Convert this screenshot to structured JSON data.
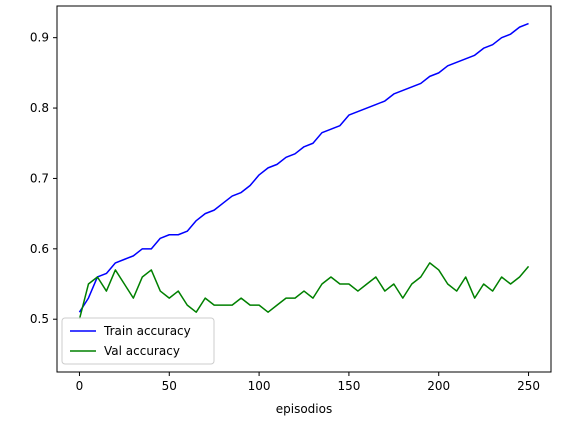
{
  "chart_data": {
    "type": "line",
    "title": "",
    "xlabel": "episodios",
    "ylabel": "",
    "xlim": [
      -12.5,
      262.5
    ],
    "ylim": [
      0.425,
      0.945
    ],
    "xticks": [
      0,
      50,
      100,
      150,
      200,
      250
    ],
    "yticks": [
      0.5,
      0.6,
      0.7,
      0.8,
      0.9
    ],
    "xtick_labels": [
      "0",
      "50",
      "100",
      "150",
      "200",
      "250"
    ],
    "ytick_labels": [
      "0.5",
      "0.6",
      "0.7",
      "0.8",
      "0.9"
    ],
    "grid": false,
    "legend": {
      "placement": "lower-left"
    },
    "series": [
      {
        "name": "Train accuracy",
        "color": "#0000ff",
        "x": [
          0,
          5,
          10,
          15,
          20,
          25,
          30,
          35,
          40,
          45,
          50,
          55,
          60,
          65,
          70,
          75,
          80,
          85,
          90,
          95,
          100,
          105,
          110,
          115,
          120,
          125,
          130,
          135,
          140,
          145,
          150,
          155,
          160,
          165,
          170,
          175,
          180,
          185,
          190,
          195,
          200,
          205,
          210,
          215,
          220,
          225,
          230,
          235,
          240,
          245,
          250
        ],
        "y": [
          0.51,
          0.53,
          0.56,
          0.565,
          0.58,
          0.585,
          0.59,
          0.6,
          0.6,
          0.615,
          0.62,
          0.62,
          0.625,
          0.64,
          0.65,
          0.655,
          0.665,
          0.675,
          0.68,
          0.69,
          0.705,
          0.715,
          0.72,
          0.73,
          0.735,
          0.745,
          0.75,
          0.765,
          0.77,
          0.775,
          0.79,
          0.795,
          0.8,
          0.805,
          0.81,
          0.82,
          0.825,
          0.83,
          0.835,
          0.845,
          0.85,
          0.86,
          0.865,
          0.87,
          0.875,
          0.885,
          0.89,
          0.9,
          0.905,
          0.915,
          0.92
        ]
      },
      {
        "name": "Val accuracy",
        "color": "#008000",
        "x": [
          0,
          5,
          10,
          15,
          20,
          25,
          30,
          35,
          40,
          45,
          50,
          55,
          60,
          65,
          70,
          75,
          80,
          85,
          90,
          95,
          100,
          105,
          110,
          115,
          120,
          125,
          130,
          135,
          140,
          145,
          150,
          155,
          160,
          165,
          170,
          175,
          180,
          185,
          190,
          195,
          200,
          205,
          210,
          215,
          220,
          225,
          230,
          235,
          240,
          245,
          250
        ],
        "y": [
          0.5,
          0.55,
          0.56,
          0.54,
          0.57,
          0.55,
          0.53,
          0.56,
          0.57,
          0.54,
          0.53,
          0.54,
          0.52,
          0.51,
          0.53,
          0.52,
          0.52,
          0.52,
          0.53,
          0.52,
          0.52,
          0.51,
          0.52,
          0.53,
          0.53,
          0.54,
          0.53,
          0.55,
          0.56,
          0.55,
          0.55,
          0.54,
          0.55,
          0.56,
          0.54,
          0.55,
          0.53,
          0.55,
          0.56,
          0.58,
          0.57,
          0.55,
          0.54,
          0.56,
          0.53,
          0.55,
          0.54,
          0.56,
          0.55,
          0.56,
          0.575
        ]
      }
    ]
  }
}
